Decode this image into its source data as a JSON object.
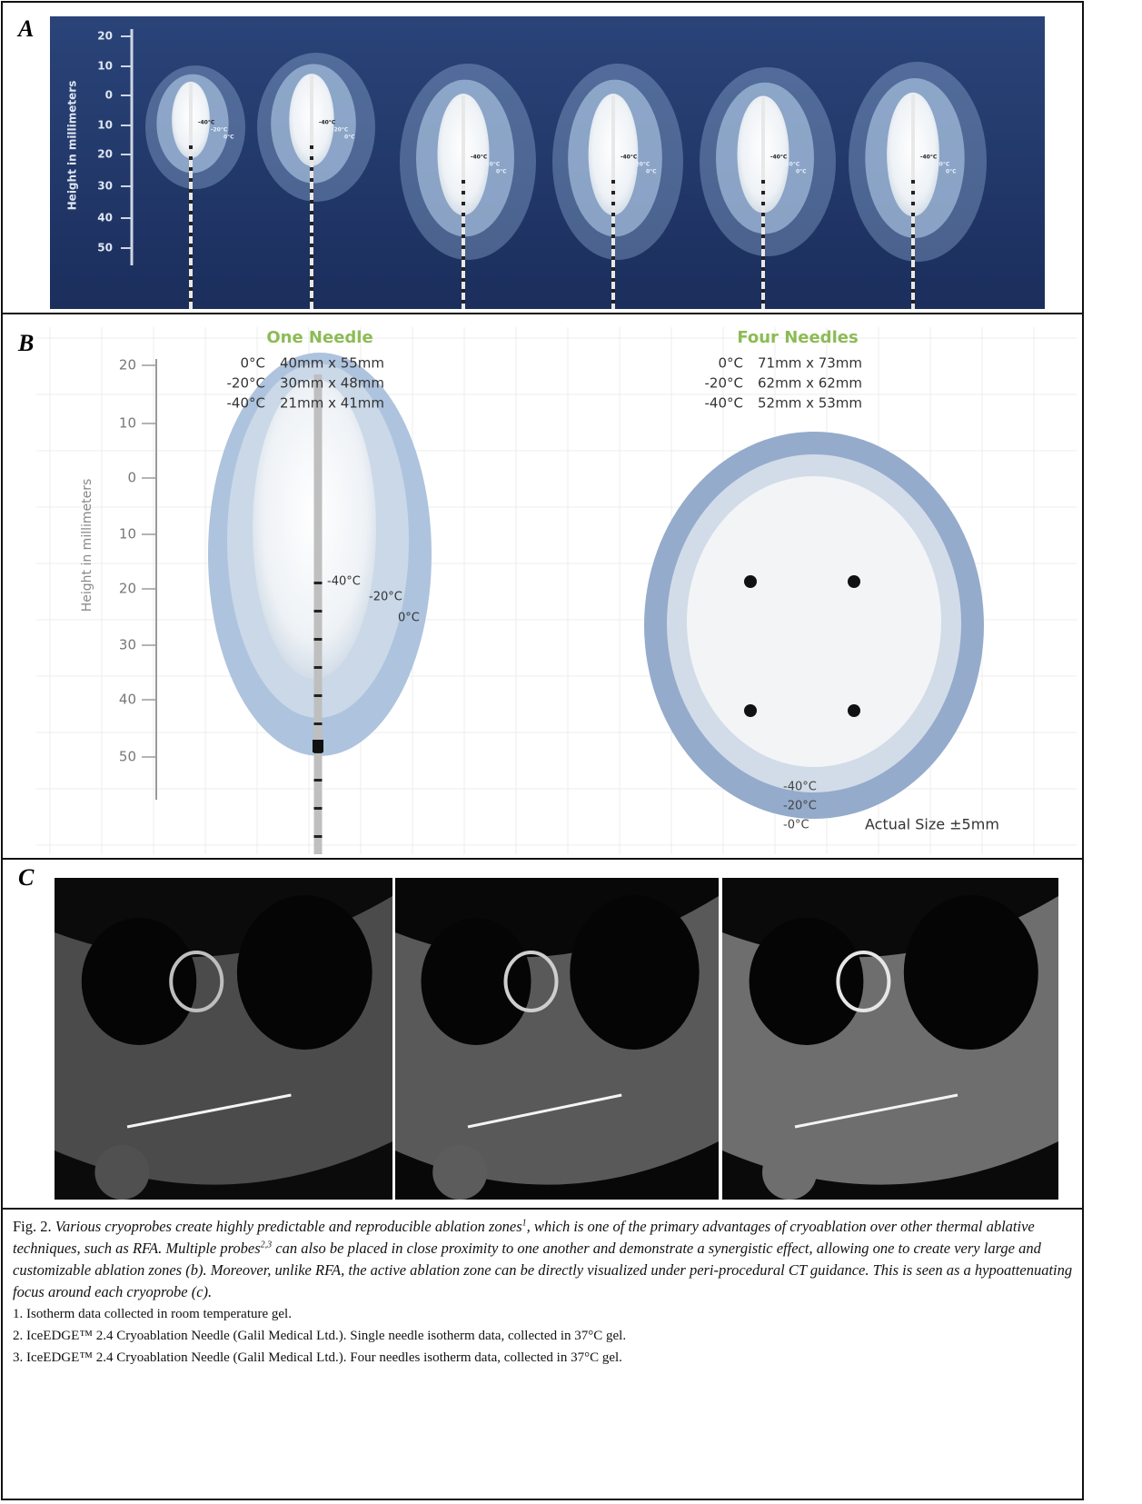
{
  "panel_a": {
    "label": "A",
    "axis_label": "Height in millimeters",
    "ticks": [
      "20",
      "10",
      "0",
      "10",
      "20",
      "30",
      "40",
      "50"
    ],
    "isotherms": [
      "-40°C",
      "-20°C",
      "0°C"
    ]
  },
  "panel_b": {
    "label": "B",
    "axis_label": "Height in millimeters",
    "ticks": [
      "20",
      "10",
      "0",
      "10",
      "20",
      "30",
      "40",
      "50"
    ],
    "one_needle": {
      "title": "One Needle",
      "rows": [
        [
          "0°C",
          "40mm x 55mm"
        ],
        [
          "-20°C",
          "30mm x 48mm"
        ],
        [
          "-40°C",
          "21mm x 41mm"
        ]
      ],
      "isotherms": [
        "-40°C",
        "-20°C",
        "0°C"
      ]
    },
    "four_needles": {
      "title": "Four Needles",
      "rows": [
        [
          "0°C",
          "71mm x 73mm"
        ],
        [
          "-20°C",
          "62mm x 62mm"
        ],
        [
          "-40°C",
          "52mm x 53mm"
        ]
      ],
      "isotherms": [
        "-40°C",
        "-20°C",
        "-0°C"
      ],
      "note": "Actual Size ±5mm"
    }
  },
  "panel_c": {
    "label": "C"
  },
  "caption": {
    "prefix": "Fig. 2.",
    "runs": [
      {
        "text": "Various cryoprobes create highly predictable and reproducible ablation zones",
        "sup": false
      },
      {
        "text": "1",
        "sup": true
      },
      {
        "text": ", which is one of the primary advantages of cryoablation over other thermal ablative techniques, such as RFA. Multiple probes",
        "sup": false
      },
      {
        "text": "2,3",
        "sup": true
      },
      {
        "text": " can also be placed in close proximity to one another and demonstrate a synergistic effect, allowing one to create very large and customizable ablation zones (b). Moreover, unlike RFA, the active ablation zone can be directly visualized under peri-procedural CT guidance. This is seen as a hypoattenuating focus around each cryoprobe (c).",
        "sup": false
      }
    ],
    "footnotes": [
      "1. Isotherm data collected in room temperature gel.",
      "2. IceEDGE™ 2.4 Cryoablation Needle (Galil Medical Ltd.). Single needle isotherm data, collected in 37°C gel.",
      "3. IceEDGE™ 2.4 Cryoablation Needle (Galil Medical Ltd.). Four needles isotherm data, collected in 37°C gel."
    ]
  }
}
